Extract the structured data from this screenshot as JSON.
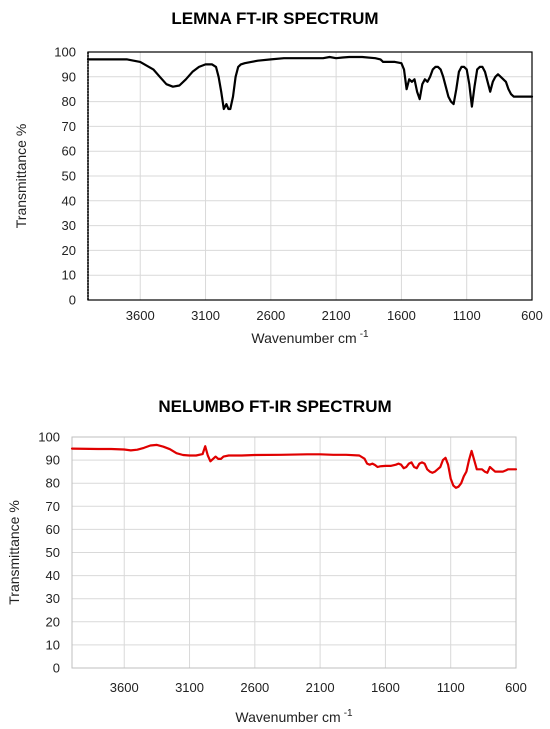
{
  "chart_data": [
    {
      "type": "line",
      "title": "LEMNA FT-IR SPECTRUM",
      "xlabel": "Wavenumber cm",
      "xlabel_sup": "-1",
      "ylabel": "Transmittance %",
      "xlim": [
        4000,
        600
      ],
      "ylim": [
        0,
        100
      ],
      "x_reversed": true,
      "grid": true,
      "xticks": [
        3600,
        3100,
        2600,
        2100,
        1600,
        1100,
        600
      ],
      "yticks": [
        0,
        10,
        20,
        30,
        40,
        50,
        60,
        70,
        80,
        90,
        100
      ],
      "color": "#000000",
      "series": [
        {
          "x": [
            4000,
            3800,
            3700,
            3600,
            3500,
            3450,
            3400,
            3350,
            3300,
            3250,
            3200,
            3150,
            3100,
            3050,
            3020,
            3000,
            2980,
            2960,
            2940,
            2925,
            2910,
            2890,
            2870,
            2850,
            2830,
            2800,
            2750,
            2700,
            2600,
            2500,
            2400,
            2300,
            2200,
            2150,
            2100,
            2050,
            2000,
            1900,
            1800,
            1760,
            1740,
            1700,
            1650,
            1600,
            1580,
            1560,
            1540,
            1520,
            1500,
            1480,
            1460,
            1440,
            1420,
            1400,
            1380,
            1360,
            1340,
            1320,
            1300,
            1280,
            1260,
            1240,
            1220,
            1200,
            1180,
            1160,
            1140,
            1120,
            1100,
            1080,
            1060,
            1040,
            1020,
            1000,
            980,
            960,
            940,
            920,
            900,
            880,
            860,
            840,
            820,
            800,
            780,
            760,
            740,
            720,
            700,
            680,
            660,
            640,
            620,
            600
          ],
          "y": [
            97,
            97,
            97,
            96,
            93,
            90,
            87,
            86,
            86.5,
            89,
            92,
            94,
            95,
            95,
            94,
            90,
            84,
            77,
            79,
            77,
            77,
            82,
            90,
            94,
            95,
            95.5,
            96,
            96.5,
            97,
            97.5,
            97.5,
            97.5,
            97.5,
            98,
            97.5,
            97.8,
            98,
            98,
            97.5,
            97,
            96,
            96,
            96,
            95.5,
            93,
            85,
            89,
            88,
            89,
            84,
            81,
            87,
            89,
            88,
            90,
            93,
            94,
            94,
            93,
            90,
            86,
            82,
            80,
            79,
            85,
            92,
            94,
            94,
            93,
            87,
            78,
            86,
            93,
            94,
            94,
            92,
            88,
            84,
            88,
            90,
            91,
            90,
            89,
            88,
            85,
            83,
            82,
            82,
            82,
            82,
            82,
            82,
            82,
            82
          ]
        }
      ]
    },
    {
      "type": "line",
      "title": "NELUMBO FT-IR SPECTRUM",
      "xlabel": "Wavenumber cm",
      "xlabel_sup": "-1",
      "ylabel": "Transmittance %",
      "xlim": [
        4000,
        600
      ],
      "ylim": [
        0,
        100
      ],
      "x_reversed": true,
      "grid": true,
      "xticks": [
        3600,
        3100,
        2600,
        2100,
        1600,
        1100,
        600
      ],
      "yticks": [
        0,
        10,
        20,
        30,
        40,
        50,
        60,
        70,
        80,
        90,
        100
      ],
      "color": "#e00000",
      "series": [
        {
          "x": [
            4000,
            3800,
            3700,
            3600,
            3550,
            3500,
            3450,
            3400,
            3350,
            3300,
            3250,
            3200,
            3150,
            3100,
            3050,
            3000,
            2980,
            2960,
            2940,
            2920,
            2900,
            2880,
            2860,
            2840,
            2800,
            2700,
            2600,
            2400,
            2200,
            2100,
            2000,
            1900,
            1800,
            1760,
            1740,
            1720,
            1700,
            1680,
            1660,
            1640,
            1600,
            1560,
            1520,
            1500,
            1480,
            1460,
            1440,
            1420,
            1400,
            1380,
            1360,
            1340,
            1320,
            1300,
            1280,
            1260,
            1240,
            1220,
            1200,
            1180,
            1160,
            1140,
            1120,
            1100,
            1080,
            1060,
            1040,
            1020,
            1000,
            980,
            960,
            940,
            920,
            900,
            880,
            860,
            840,
            820,
            800,
            780,
            760,
            740,
            720,
            700,
            680,
            660,
            640,
            620,
            600
          ],
          "y": [
            95,
            94.8,
            94.8,
            94.6,
            94.2,
            94.5,
            95.3,
            96.3,
            96.6,
            95.8,
            94.7,
            93,
            92.2,
            92,
            92,
            92.6,
            96,
            92,
            89.5,
            90.5,
            91.5,
            90.5,
            90.5,
            91.5,
            92,
            92,
            92.2,
            92.3,
            92.5,
            92.5,
            92.3,
            92.3,
            92,
            90.6,
            88.5,
            88,
            88.5,
            87.9,
            87,
            87.3,
            87.5,
            87.5,
            88,
            88.5,
            88,
            86.5,
            87,
            88.5,
            89,
            87,
            86.5,
            88.5,
            89,
            88.5,
            86,
            85,
            84.5,
            85,
            86,
            87,
            90,
            91,
            88,
            82,
            79,
            78,
            78.5,
            80,
            83,
            85,
            90,
            94,
            90,
            86,
            86,
            86,
            85,
            84.5,
            87,
            86,
            85,
            85,
            85,
            85,
            85.5,
            86,
            86,
            86,
            86
          ]
        }
      ]
    }
  ]
}
